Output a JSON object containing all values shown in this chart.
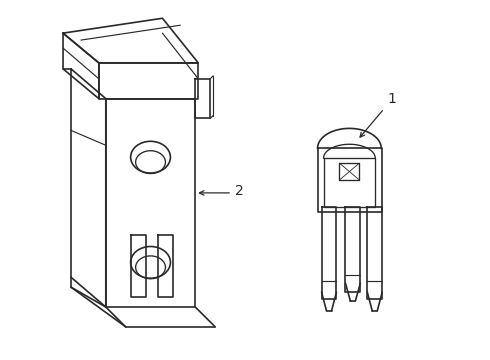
{
  "bg_color": "#ffffff",
  "line_color": "#2a2a2a",
  "line_width": 1.2,
  "label1": "1",
  "label2": "2",
  "figsize": [
    4.9,
    3.6
  ],
  "dpi": 100
}
